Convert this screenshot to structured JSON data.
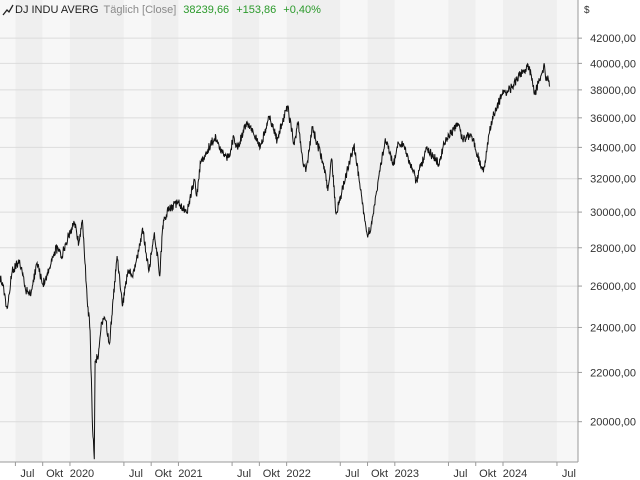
{
  "header": {
    "symbol": "DJ INDU AVERG",
    "mode": "Täglich [Close]",
    "price": "38239,66",
    "change": "+153,86",
    "change_pct": "+0,40%"
  },
  "currency": "$",
  "colors": {
    "line": "#111111",
    "band_light": "#f7f7f7",
    "band_dark": "#efefef",
    "grid": "#dcdcdc",
    "axis_bg": "#ffffff",
    "positive": "#2b9a2b"
  },
  "chart_data": {
    "type": "line",
    "title": "",
    "xlabel": "",
    "ylabel": "",
    "scale": "log",
    "ylim": [
      18500,
      43500
    ],
    "xlim": [
      "2019-05-10",
      "2024-09-10"
    ],
    "y_ticks": [
      20000,
      22000,
      24000,
      26000,
      28000,
      30000,
      32000,
      34000,
      36000,
      38000,
      40000,
      42000
    ],
    "y_tick_labels": [
      "20000,00",
      "22000,00",
      "24000,00",
      "26000,00",
      "28000,00",
      "30000,00",
      "32000,00",
      "34000,00",
      "36000,00",
      "38000,00",
      "40000,00",
      "42000,00"
    ],
    "x_ticks": [
      {
        "date": "2019-07-01",
        "label": "Jul"
      },
      {
        "date": "2019-10-01",
        "label": "Okt"
      },
      {
        "date": "2020-01-01",
        "label": "2020"
      },
      {
        "date": "2020-07-01",
        "label": "Jul"
      },
      {
        "date": "2020-10-01",
        "label": "Okt"
      },
      {
        "date": "2021-01-01",
        "label": "2021"
      },
      {
        "date": "2021-07-01",
        "label": "Jul"
      },
      {
        "date": "2021-10-01",
        "label": "Okt"
      },
      {
        "date": "2022-01-01",
        "label": "2022"
      },
      {
        "date": "2022-07-01",
        "label": "Jul"
      },
      {
        "date": "2022-10-01",
        "label": "Okt"
      },
      {
        "date": "2023-01-01",
        "label": "2023"
      },
      {
        "date": "2023-07-01",
        "label": "Jul"
      },
      {
        "date": "2023-10-01",
        "label": "Okt"
      },
      {
        "date": "2024-01-01",
        "label": "2024"
      },
      {
        "date": "2024-07-01",
        "label": "Jul"
      }
    ],
    "grid": true,
    "series": [
      {
        "points": [
          [
            "2019-05-10",
            26500
          ],
          [
            "2019-05-20",
            26000
          ],
          [
            "2019-06-03",
            24900
          ],
          [
            "2019-06-20",
            26750
          ],
          [
            "2019-07-15",
            27350
          ],
          [
            "2019-08-05",
            25750
          ],
          [
            "2019-08-23",
            25650
          ],
          [
            "2019-09-12",
            27200
          ],
          [
            "2019-10-02",
            26100
          ],
          [
            "2019-10-25",
            26950
          ],
          [
            "2019-11-15",
            28000
          ],
          [
            "2019-12-03",
            27500
          ],
          [
            "2019-12-27",
            28650
          ],
          [
            "2020-01-17",
            29350
          ],
          [
            "2020-01-31",
            28250
          ],
          [
            "2020-02-12",
            29550
          ],
          [
            "2020-02-28",
            25400
          ],
          [
            "2020-03-09",
            23850
          ],
          [
            "2020-03-16",
            20200
          ],
          [
            "2020-03-23",
            18600
          ],
          [
            "2020-03-26",
            22500
          ],
          [
            "2020-04-06",
            22700
          ],
          [
            "2020-04-17",
            24250
          ],
          [
            "2020-04-30",
            24350
          ],
          [
            "2020-05-13",
            23250
          ],
          [
            "2020-06-08",
            27550
          ],
          [
            "2020-06-26",
            25000
          ],
          [
            "2020-07-15",
            26850
          ],
          [
            "2020-07-31",
            26450
          ],
          [
            "2020-08-21",
            27900
          ],
          [
            "2020-09-02",
            29100
          ],
          [
            "2020-09-23",
            26750
          ],
          [
            "2020-10-12",
            28850
          ],
          [
            "2020-10-30",
            26500
          ],
          [
            "2020-11-09",
            29150
          ],
          [
            "2020-11-24",
            30050
          ],
          [
            "2020-12-31",
            30600
          ],
          [
            "2021-01-29",
            29950
          ],
          [
            "2021-02-24",
            31950
          ],
          [
            "2021-03-04",
            30950
          ],
          [
            "2021-03-17",
            33000
          ],
          [
            "2021-04-15",
            34050
          ],
          [
            "2021-05-07",
            34750
          ],
          [
            "2021-05-19",
            33900
          ],
          [
            "2021-06-18",
            33300
          ],
          [
            "2021-07-07",
            34700
          ],
          [
            "2021-07-19",
            33950
          ],
          [
            "2021-08-16",
            35600
          ],
          [
            "2021-09-02",
            35450
          ],
          [
            "2021-10-04",
            33950
          ],
          [
            "2021-11-02",
            36100
          ],
          [
            "2021-11-30",
            34450
          ],
          [
            "2021-12-29",
            36500
          ],
          [
            "2022-01-04",
            36800
          ],
          [
            "2022-01-27",
            34150
          ],
          [
            "2022-02-09",
            35750
          ],
          [
            "2022-02-24",
            33200
          ],
          [
            "2022-03-08",
            32650
          ],
          [
            "2022-03-29",
            35300
          ],
          [
            "2022-05-05",
            33000
          ],
          [
            "2022-05-20",
            31250
          ],
          [
            "2022-06-02",
            33250
          ],
          [
            "2022-06-17",
            29900
          ],
          [
            "2022-08-16",
            34150
          ],
          [
            "2022-09-30",
            28700
          ],
          [
            "2022-10-13",
            29200
          ],
          [
            "2022-11-30",
            34600
          ],
          [
            "2022-12-28",
            32900
          ],
          [
            "2023-01-13",
            34300
          ],
          [
            "2023-02-02",
            34050
          ],
          [
            "2023-03-15",
            31850
          ],
          [
            "2023-04-18",
            33950
          ],
          [
            "2023-05-31",
            32900
          ],
          [
            "2023-06-16",
            34300
          ],
          [
            "2023-07-20",
            35200
          ],
          [
            "2023-08-01",
            35650
          ],
          [
            "2023-08-18",
            34500
          ],
          [
            "2023-09-14",
            34900
          ],
          [
            "2023-10-27",
            32400
          ],
          [
            "2023-11-14",
            34850
          ],
          [
            "2023-12-01",
            36250
          ],
          [
            "2023-12-29",
            37700
          ],
          [
            "2024-01-31",
            38150
          ],
          [
            "2024-02-22",
            39050
          ],
          [
            "2024-03-28",
            39800
          ],
          [
            "2024-04-17",
            37750
          ],
          [
            "2024-05-03",
            38700
          ],
          [
            "2024-05-20",
            39850
          ],
          [
            "2024-05-23",
            39050
          ],
          [
            "2024-06-04",
            38700
          ],
          [
            "2024-06-07",
            38250
          ]
        ]
      }
    ]
  }
}
